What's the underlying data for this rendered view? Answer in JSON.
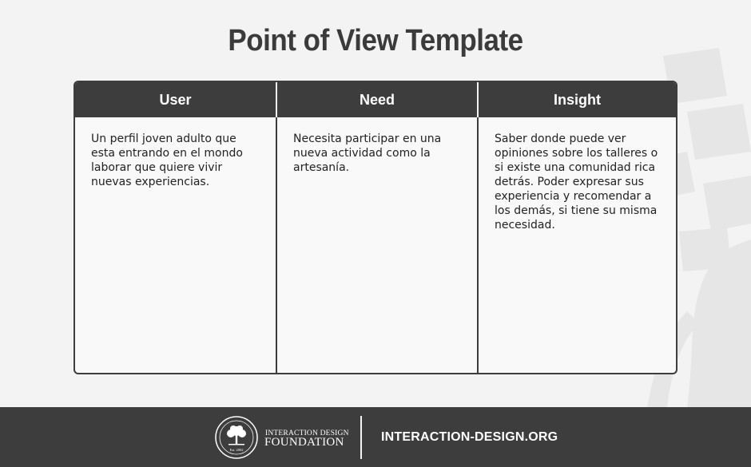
{
  "title": "Point of View Template",
  "table": {
    "headers": [
      "User",
      "Need",
      "Insight"
    ],
    "cells": [
      "Un perfil joven adulto que\nesta entrando en el mondo\nlaborar que quiere vivir\nnuevas experiencias.",
      "Necesita participar en una\nnueva actividad como la\nartesanía.",
      "Saber donde puede ver\nopiniones sobre los talleres o\nsi existe una comunidad rica\ndetrás. Poder expresar sus\nexperiencia y recomendar a\nlos demás, si tiene su misma\nnecesidad."
    ]
  },
  "footer": {
    "org_line1": "INTERACTION DESIGN",
    "org_line2": "FOUNDATION",
    "seal_text": "Est. 2002",
    "website": "INTERACTION-DESIGN.ORG"
  },
  "colors": {
    "dark": "#3d3d3d",
    "background": "#f3f3f3",
    "cell_background": "#f9f9f9",
    "text": "#222222"
  }
}
